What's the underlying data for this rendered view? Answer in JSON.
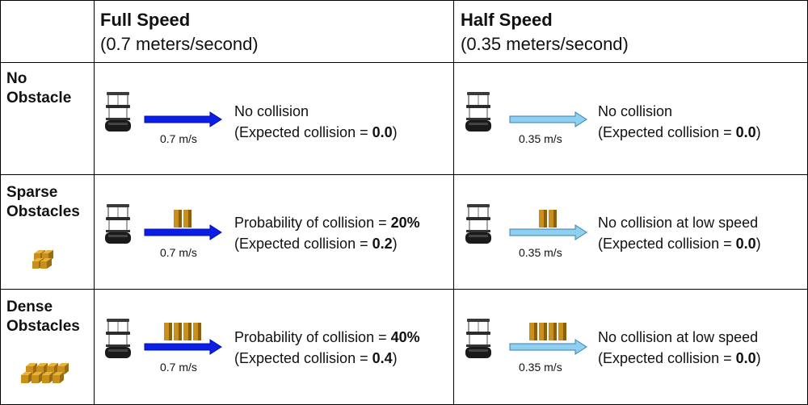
{
  "columns": [
    {
      "title": "Full Speed",
      "subtitle": "(0.7 meters/second)"
    },
    {
      "title": "Half Speed",
      "subtitle": "(0.35 meters/second)"
    }
  ],
  "rows": [
    {
      "label_line1": "No",
      "label_line2": "Obstacle",
      "obstacle_icon": "none",
      "box_count": 0,
      "cells": [
        {
          "speed_label": "0.7 m/s",
          "line1": "No collision",
          "line1_prefix": "No collision",
          "line1_value": "",
          "line2_prefix": "(Expected collision = ",
          "line2_value": "0.0",
          "line2_suffix": ")"
        },
        {
          "speed_label": "0.35 m/s",
          "line1_prefix": "No collision",
          "line1_value": "",
          "line2_prefix": "(Expected collision = ",
          "line2_value": "0.0",
          "line2_suffix": ")"
        }
      ]
    },
    {
      "label_line1": "Sparse",
      "label_line2": "Obstacles",
      "obstacle_icon": "cubes-2",
      "box_count": 2,
      "cells": [
        {
          "speed_label": "0.7 m/s",
          "line1_prefix": "Probability of collision = ",
          "line1_value": "20%",
          "line2_prefix": "(Expected collision = ",
          "line2_value": "0.2",
          "line2_suffix": ")"
        },
        {
          "speed_label": "0.35 m/s",
          "line1_prefix": "No collision at low speed",
          "line1_value": "",
          "line2_prefix": "(Expected collision = ",
          "line2_value": "0.0",
          "line2_suffix": ")"
        }
      ]
    },
    {
      "label_line1": "Dense",
      "label_line2": "Obstacles",
      "obstacle_icon": "cubes-4",
      "box_count": 4,
      "cells": [
        {
          "speed_label": "0.7 m/s",
          "line1_prefix": "Probability of collision = ",
          "line1_value": "40%",
          "line2_prefix": "(Expected collision = ",
          "line2_value": "0.4",
          "line2_suffix": ")"
        },
        {
          "speed_label": "0.35 m/s",
          "line1_prefix": "No collision at low speed",
          "line1_value": "",
          "line2_prefix": "(Expected collision = ",
          "line2_value": "0.0",
          "line2_suffix": ")"
        }
      ]
    }
  ],
  "colors": {
    "full_speed_arrow": "#0a1ee6",
    "half_speed_arrow": "#8fd0f0",
    "obstacle_box": "#c8901a",
    "obstacle_box_dark": "#8a6010"
  }
}
